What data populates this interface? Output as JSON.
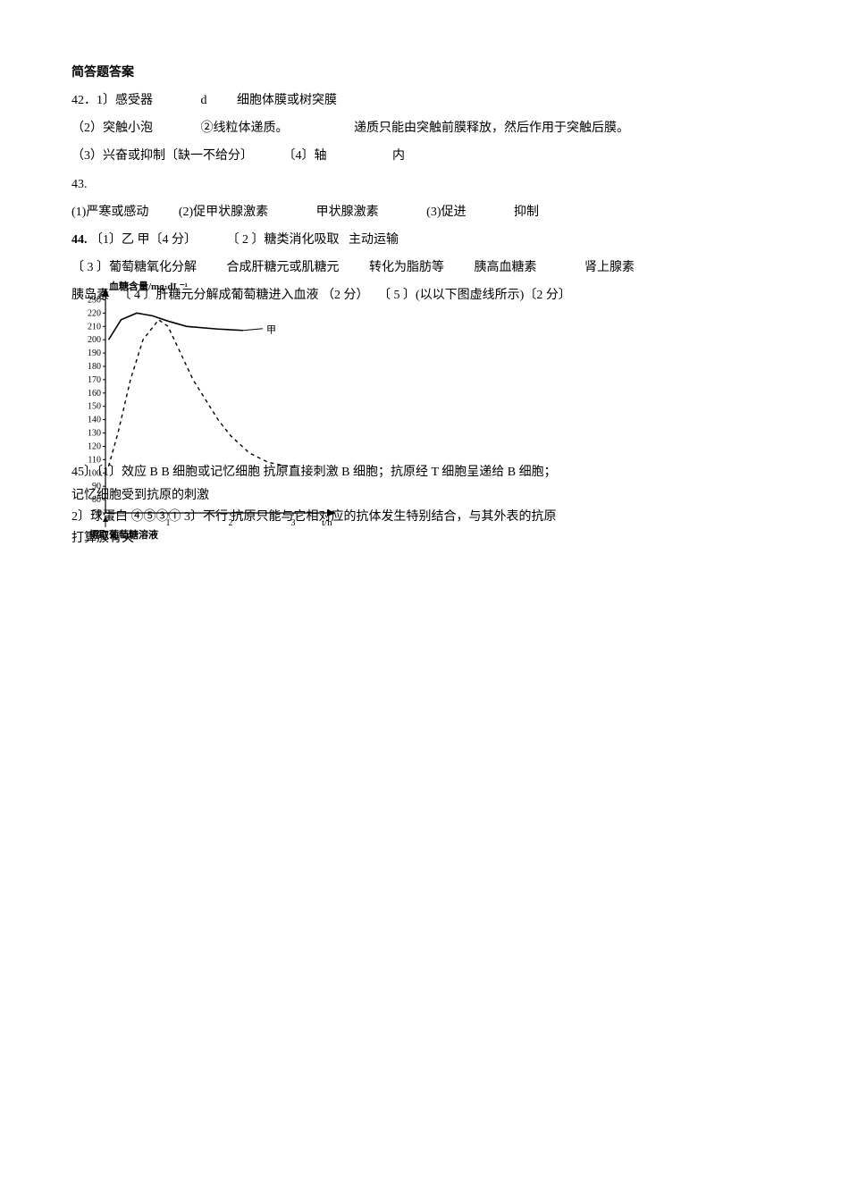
{
  "heading": "简答题答案",
  "q42": {
    "l1a": "42．1〕感受器",
    "l1b": "d",
    "l1c": "细胞体膜或树突膜",
    "l2a": "（2）突触小泡",
    "l2b": "②线粒体递质。",
    "l2c": "递质只能由突触前膜释放，然后作用于突触后膜。",
    "l3a": "（3）兴奋或抑制〔缺一不给分〕",
    "l3b": "〔4〕轴",
    "l3c": "内"
  },
  "q43": {
    "l1": "43.",
    "l2a": "(1)严寒或感动",
    "l2b": "(2)促甲状腺激素",
    "l2c": "甲状腺激素",
    "l2d": "(3)促进",
    "l2e": "抑制"
  },
  "q44": {
    "l1a": "44.",
    "l1b": "〔1〕乙 甲〔4 分〕",
    "l1c": "〔 2 〕糖类消化吸取",
    "l1d": "主动运输",
    "l2a": "〔 3 〕葡萄糖氧化分解",
    "l2b": "合成肝糖元或肌糖元",
    "l2c": "转化为脂肪等",
    "l2d": "胰高血糖素",
    "l2e": "肾上腺素",
    "l3a": "胰岛素",
    "l3b": "〔 4 〕肝糖元分解成葡萄糖进入血液 （2 分）",
    "l3c": "〔 5 〕(以以下图虚线所示)〔2 分〕"
  },
  "q45": {
    "l1": "45〕〔1〕效应 B     B 细胞或记忆细胞      抗原直接刺激 B 细胞；抗原经 T 细胞呈递给 B 细胞；",
    "l2": "记忆细胞受到抗原的刺激",
    "l3": "2〕球蛋白     ④⑤③①        3〕不行    抗原只能与它相对应的抗体发生特别结合，与其外表的抗原",
    "l4": "打算簇有关"
  },
  "chart": {
    "y_axis_label": "血糖含量/mg·dL⁻¹",
    "x_axis_label": "t/h",
    "x_start_label": "摄取葡萄糖溶液",
    "series_label": "甲",
    "y_ticks": [
      70,
      80,
      90,
      100,
      110,
      120,
      130,
      140,
      150,
      160,
      170,
      180,
      190,
      200,
      210,
      220,
      230
    ],
    "x_ticks": [
      1,
      2,
      3
    ],
    "ylim": [
      70,
      235
    ],
    "xlim": [
      0,
      3.6
    ],
    "axis_color": "#000000",
    "solid_color": "#000000",
    "dash_color": "#000000",
    "background": "#ffffff",
    "label_fontsize": 11,
    "tick_fontsize": 10,
    "solid_series": [
      {
        "x": 0.05,
        "y": 200
      },
      {
        "x": 0.25,
        "y": 215
      },
      {
        "x": 0.5,
        "y": 220
      },
      {
        "x": 0.75,
        "y": 218
      },
      {
        "x": 1.0,
        "y": 214
      },
      {
        "x": 1.3,
        "y": 210
      },
      {
        "x": 1.8,
        "y": 208
      },
      {
        "x": 2.2,
        "y": 207
      }
    ],
    "dash_series": [
      {
        "x": 0.05,
        "y": 105
      },
      {
        "x": 0.2,
        "y": 130
      },
      {
        "x": 0.4,
        "y": 170
      },
      {
        "x": 0.6,
        "y": 200
      },
      {
        "x": 0.85,
        "y": 215
      },
      {
        "x": 1.0,
        "y": 210
      },
      {
        "x": 1.2,
        "y": 190
      },
      {
        "x": 1.4,
        "y": 170
      },
      {
        "x": 1.6,
        "y": 155
      },
      {
        "x": 1.8,
        "y": 140
      },
      {
        "x": 2.0,
        "y": 128
      },
      {
        "x": 2.3,
        "y": 115
      },
      {
        "x": 2.6,
        "y": 108
      },
      {
        "x": 3.0,
        "y": 104
      }
    ]
  }
}
